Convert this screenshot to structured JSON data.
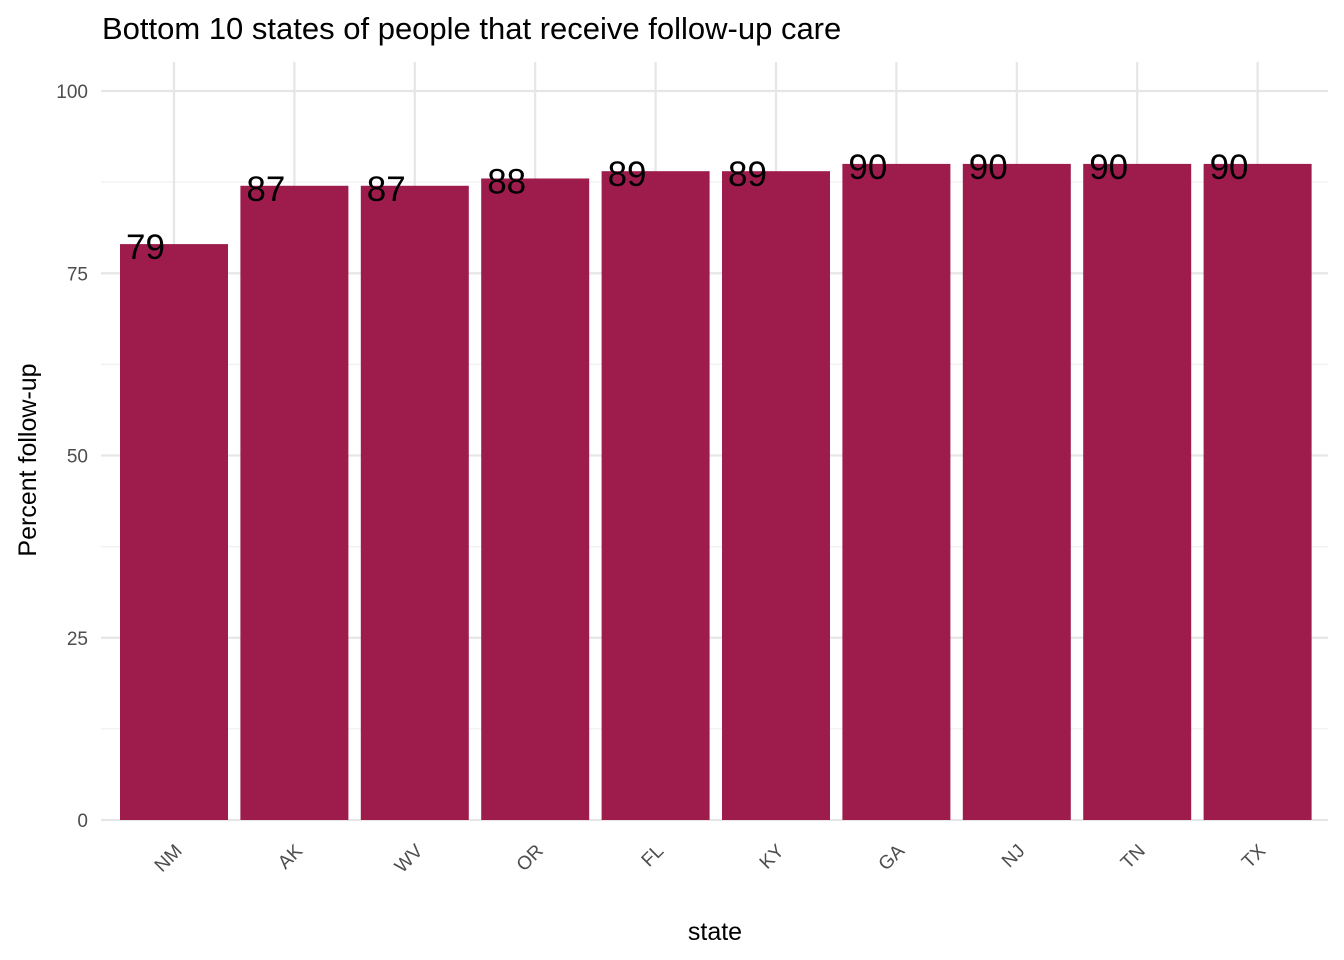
{
  "chart_data": {
    "type": "bar",
    "title": "Bottom 10 states of people that receive follow-up care",
    "xlabel": "state",
    "ylabel": "Percent follow-up",
    "categories": [
      "NM",
      "AK",
      "WV",
      "OR",
      "FL",
      "KY",
      "GA",
      "NJ",
      "TN",
      "TX"
    ],
    "values": [
      79,
      87,
      87,
      88,
      89,
      89,
      90,
      90,
      90,
      90
    ],
    "data_labels": [
      "79",
      "87",
      "87",
      "88",
      "89",
      "89",
      "90",
      "90",
      "90",
      "90"
    ],
    "ylim": [
      0,
      100
    ],
    "yticks": [
      0,
      25,
      50,
      75,
      100
    ],
    "ytick_labels": [
      "0",
      "25",
      "50",
      "75",
      "100"
    ],
    "grid": true,
    "legend": "none",
    "bar_color": "#9E1C4C"
  }
}
